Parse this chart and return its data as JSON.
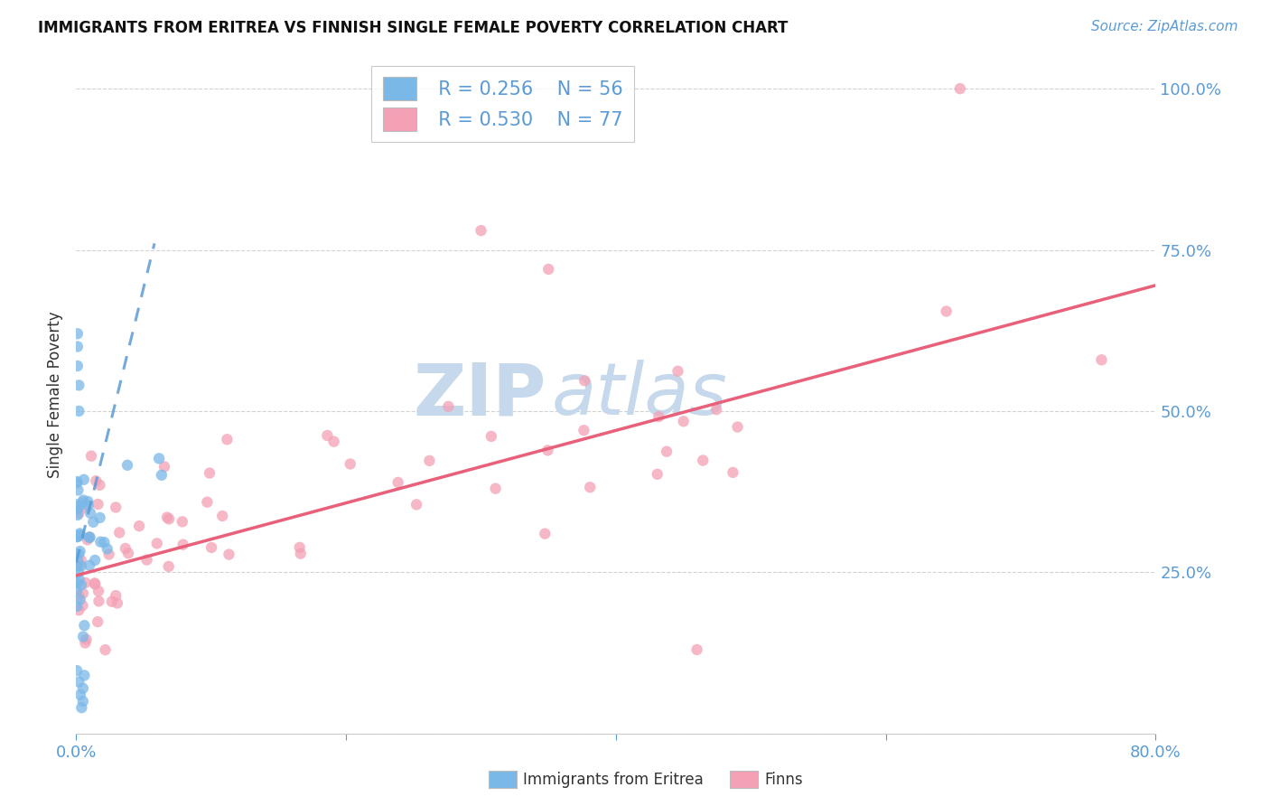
{
  "title": "IMMIGRANTS FROM ERITREA VS FINNISH SINGLE FEMALE POVERTY CORRELATION CHART",
  "source": "Source: ZipAtlas.com",
  "ylabel": "Single Female Poverty",
  "xmin": 0.0,
  "xmax": 0.8,
  "ymin": 0.0,
  "ymax": 1.05,
  "yticks": [
    0.0,
    0.25,
    0.5,
    0.75,
    1.0
  ],
  "ytick_labels": [
    "",
    "25.0%",
    "50.0%",
    "75.0%",
    "100.0%"
  ],
  "xtick_labels": [
    "0.0%",
    "",
    "",
    "",
    "80.0%"
  ],
  "background_color": "#ffffff",
  "grid_color": "#c8c8c8",
  "axis_color": "#5b9bd5",
  "tick_color": "#5b9bd5",
  "watermark1": "ZIP",
  "watermark2": "atlas",
  "watermark_color": "#c5d8ec",
  "legend_r1": "R = 0.256",
  "legend_n1": "N = 56",
  "legend_r2": "R = 0.530",
  "legend_n2": "N = 77",
  "legend_label1": "Immigrants from Eritrea",
  "legend_label2": "Finns",
  "scatter1_color": "#7ab8e8",
  "scatter2_color": "#f4a0b5",
  "line1_color": "#5b9bd5",
  "line2_color": "#e8607a",
  "line1_dash": true,
  "line2_dash": false,
  "scatter1_seed": 42,
  "scatter2_seed": 99
}
